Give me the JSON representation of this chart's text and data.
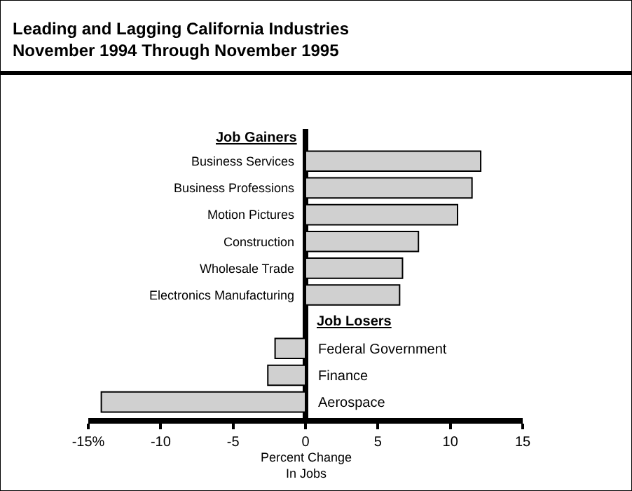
{
  "chart_data": {
    "type": "bar",
    "orientation": "horizontal",
    "title": "Leading and Lagging California Industries\nNovember 1994 Through November 1995",
    "categories": [
      "Business Services",
      "Business Professions",
      "Motion Pictures",
      "Construction",
      "Wholesale Trade",
      "Electronics Manufacturing",
      null,
      "Federal Government",
      "Finance",
      "Aerospace"
    ],
    "values": [
      12.1,
      11.5,
      10.5,
      7.8,
      6.7,
      6.5,
      null,
      -2.1,
      -2.6,
      -14.1
    ],
    "color": "#d0d0d0",
    "xlim": [
      -15,
      15
    ],
    "xticks": [
      {
        "value": -15,
        "label": "-15%"
      },
      -10,
      -5,
      0,
      5,
      10,
      15
    ],
    "xlabel": "Percent Change\nIn Jobs",
    "annotations": [
      "Job Gainers",
      "Job Losers"
    ],
    "grid": false,
    "legend": false
  }
}
